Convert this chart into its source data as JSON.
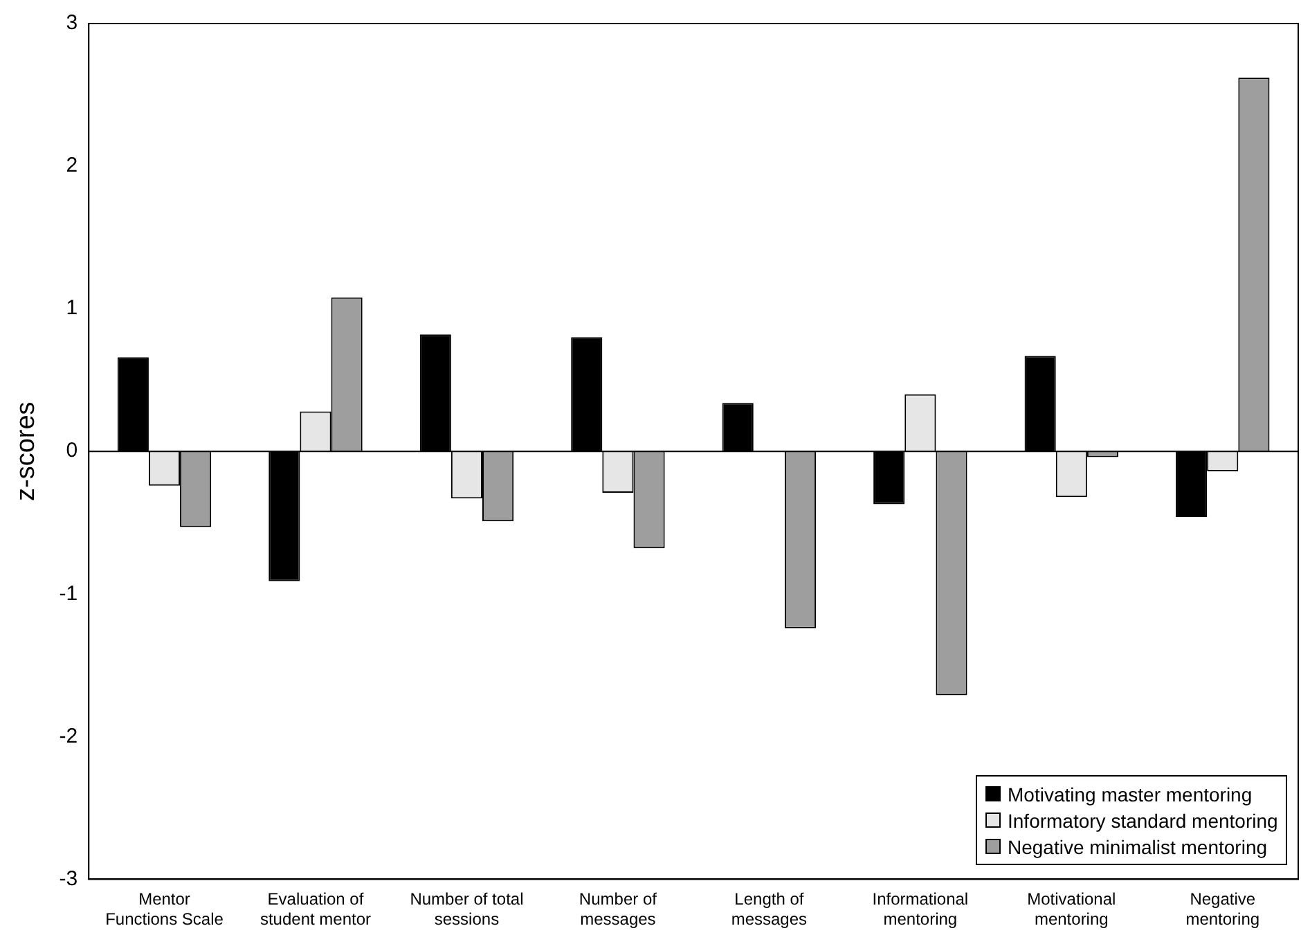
{
  "chart_data": {
    "type": "bar",
    "ylabel": "z-scores",
    "categories": [
      "Mentor Functions Scale",
      "Evaluation of student mentor",
      "Number of total sessions",
      "Number of messages",
      "Length of messages",
      "Informational mentoring",
      "Motivational mentoring",
      "Negative mentoring"
    ],
    "series": [
      {
        "name": "Motivating master mentoring",
        "color": "#000000",
        "values": [
          0.66,
          -0.91,
          0.82,
          0.8,
          0.34,
          -0.37,
          0.67,
          -0.46
        ]
      },
      {
        "name": "Informatory standard mentoring",
        "color": "#e6e6e6",
        "values": [
          -0.24,
          0.28,
          -0.33,
          -0.29,
          null,
          0.4,
          -0.32,
          -0.14
        ]
      },
      {
        "name": "Negative minimalist mentoring",
        "color": "#9e9e9e",
        "values": [
          -0.53,
          1.08,
          -0.49,
          -0.68,
          -1.24,
          -1.71,
          -0.04,
          2.62
        ]
      }
    ],
    "ylim": [
      -3,
      3
    ],
    "yticks": [
      -3,
      -2,
      -1,
      0,
      1,
      2,
      3
    ],
    "ref_lines": [
      {
        "axis": "y",
        "value": 0,
        "color": "#000000"
      }
    ],
    "grid": false,
    "legend": "bottom right"
  }
}
